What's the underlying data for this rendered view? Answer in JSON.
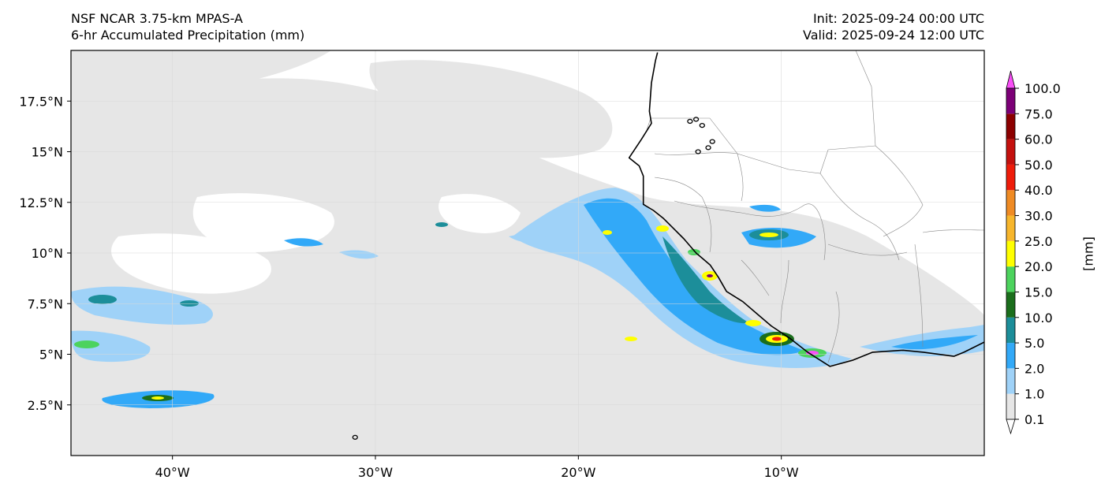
{
  "header": {
    "model": "NSF NCAR 3.75-km MPAS-A",
    "field": "6-hr Accumulated Precipitation (mm)",
    "init": "Init: 2025-09-24 00:00 UTC",
    "valid": "Valid: 2025-09-24 12:00 UTC"
  },
  "chart_data": {
    "type": "heatmap",
    "title": "6-hr Accumulated Precipitation (mm)",
    "lon_range": [
      -45,
      0
    ],
    "lat_range": [
      0,
      20
    ],
    "lon_ticks": [
      {
        "value": -40,
        "label": "40°W"
      },
      {
        "value": -30,
        "label": "30°W"
      },
      {
        "value": -20,
        "label": "20°W"
      },
      {
        "value": -10,
        "label": "10°W"
      }
    ],
    "lat_ticks": [
      {
        "value": 2.5,
        "label": "2.5°N"
      },
      {
        "value": 5,
        "label": "5°N"
      },
      {
        "value": 7.5,
        "label": "7.5°N"
      },
      {
        "value": 10,
        "label": "10°N"
      },
      {
        "value": 12.5,
        "label": "12.5°N"
      },
      {
        "value": 15,
        "label": "15°N"
      },
      {
        "value": 17.5,
        "label": "17.5°N"
      }
    ],
    "grid": true,
    "colorbar": {
      "unit": "[mm]",
      "levels": [
        "0.1",
        "1.0",
        "2.0",
        "5.0",
        "10.0",
        "15.0",
        "20.0",
        "25.0",
        "30.0",
        "40.0",
        "50.0",
        "60.0",
        "75.0",
        "100.0"
      ],
      "colors": [
        "#e6e6e6",
        "#9fd2f8",
        "#32a9f8",
        "#1c8e9a",
        "#1b6e1c",
        "#4cd35d",
        "#ffff00",
        "#f7b62c",
        "#ef8b24",
        "#ee1c0a",
        "#c4110e",
        "#8c0000",
        "#7c0077",
        "#f94ef7"
      ]
    },
    "coastline": [
      [
        -16.1,
        19.9
      ],
      [
        -16.2,
        19.5
      ],
      [
        -16.4,
        18.4
      ],
      [
        -16.5,
        17.0
      ],
      [
        -16.4,
        16.4
      ],
      [
        -16.9,
        15.6
      ],
      [
        -17.5,
        14.7
      ],
      [
        -17.0,
        14.3
      ],
      [
        -16.8,
        13.8
      ],
      [
        -16.8,
        13.0
      ],
      [
        -16.8,
        12.4
      ],
      [
        -16.3,
        12.1
      ],
      [
        -15.8,
        11.7
      ],
      [
        -15.3,
        11.2
      ],
      [
        -14.8,
        10.7
      ],
      [
        -14.2,
        10.0
      ],
      [
        -13.5,
        9.4
      ],
      [
        -13.1,
        8.8
      ],
      [
        -12.7,
        8.1
      ],
      [
        -11.9,
        7.6
      ],
      [
        -11.2,
        7.0
      ],
      [
        -10.5,
        6.4
      ],
      [
        -9.6,
        5.8
      ],
      [
        -8.7,
        5.1
      ],
      [
        -7.6,
        4.4
      ],
      [
        -6.5,
        4.7
      ],
      [
        -5.5,
        5.1
      ],
      [
        -4.0,
        5.2
      ],
      [
        -3.0,
        5.1
      ],
      [
        -1.5,
        4.9
      ],
      [
        -1.0,
        5.1
      ],
      [
        0,
        5.6
      ]
    ],
    "islands": [
      [
        -14.5,
        16.5
      ],
      [
        -14.2,
        16.6
      ],
      [
        -13.9,
        16.3
      ],
      [
        -14.1,
        15.0
      ],
      [
        -13.6,
        15.2
      ],
      [
        -13.4,
        15.5
      ],
      [
        -31.0,
        0.9
      ]
    ]
  }
}
